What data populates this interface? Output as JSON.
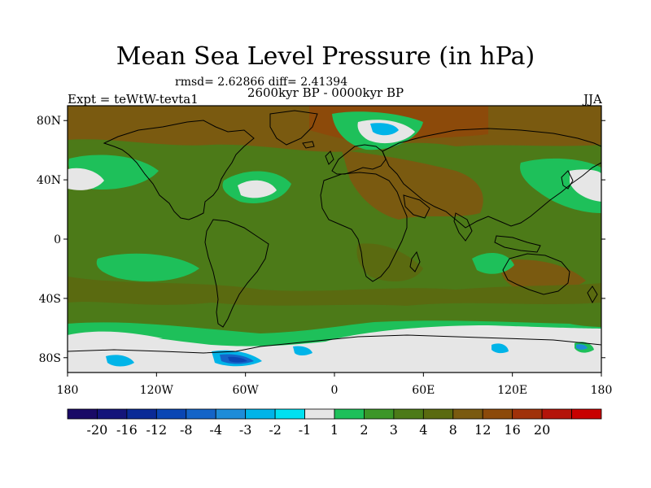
{
  "title": "Mean Sea Level Pressure (in hPa)",
  "stats": "rmsd= 2.62866 diff= 2.41394",
  "experiment": "Expt = teWtW-tevta1",
  "subtitle": "2600kyr BP - 0000kyr BP",
  "season": "JJA",
  "y_axis_labels": [
    {
      "lat": 80,
      "label": "80N"
    },
    {
      "lat": 40,
      "label": "40N"
    },
    {
      "lat": 0,
      "label": "0"
    },
    {
      "lat": -40,
      "label": "40S"
    },
    {
      "lat": -80,
      "label": "80S"
    }
  ],
  "x_axis_labels": [
    {
      "lon": -180,
      "label": "180"
    },
    {
      "lon": -120,
      "label": "120W"
    },
    {
      "lon": -60,
      "label": "60W"
    },
    {
      "lon": 0,
      "label": "0"
    },
    {
      "lon": 60,
      "label": "60E"
    },
    {
      "lon": 120,
      "label": "120E"
    },
    {
      "lon": 180,
      "label": "180"
    }
  ],
  "colorbar": {
    "colors": [
      "#1a0a66",
      "#14147a",
      "#0a2a96",
      "#0a46b4",
      "#1464c8",
      "#1e8cd8",
      "#00b4e8",
      "#00e0f0",
      "#e6e6e6",
      "#1ec05a",
      "#3c9628",
      "#4c7a18",
      "#5a6a10",
      "#7a5a10",
      "#8c4a0a",
      "#a0320a",
      "#b4140a",
      "#c80000"
    ],
    "labels": [
      "-20",
      "-16",
      "-12",
      "-8",
      "-4",
      "-3",
      "-2",
      "-1",
      "1",
      "2",
      "3",
      "4",
      "8",
      "12",
      "16",
      "20"
    ]
  }
}
